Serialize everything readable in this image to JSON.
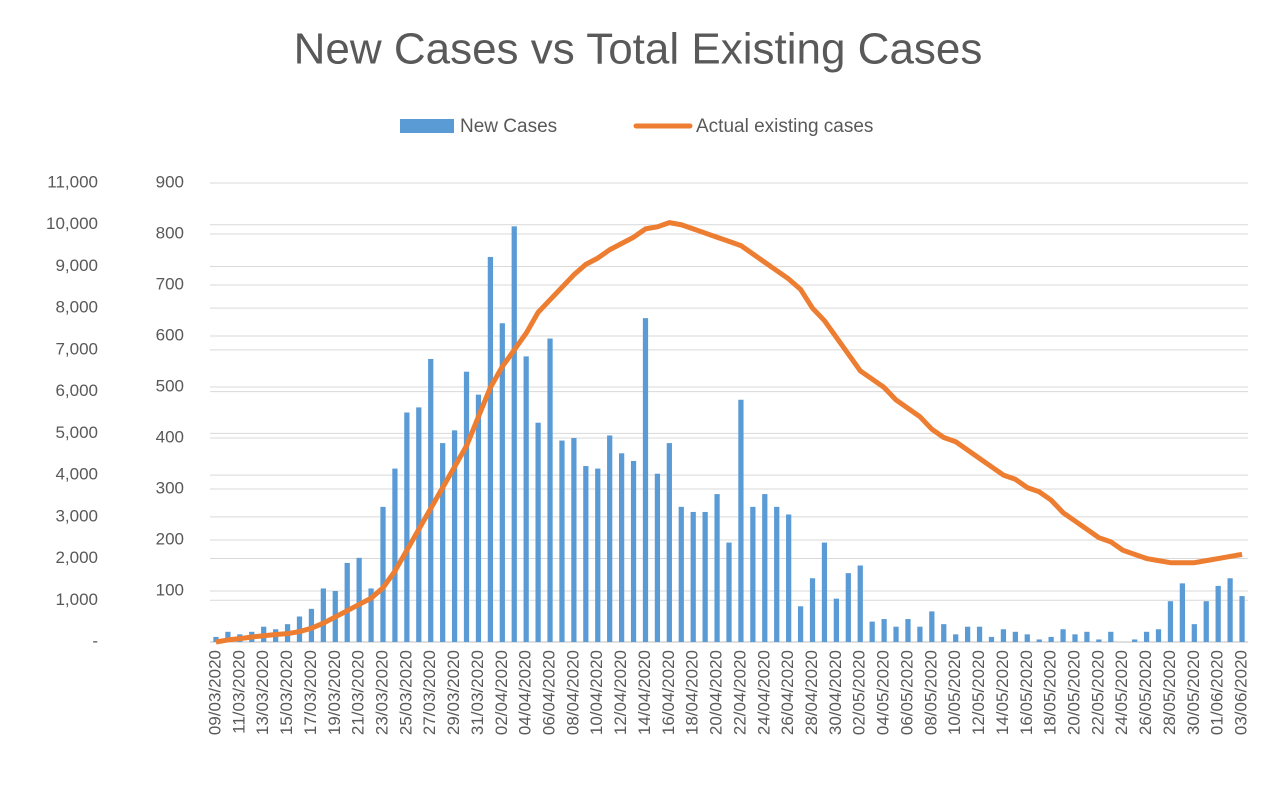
{
  "chart_data": {
    "type": "bar-line",
    "title": "New Cases vs Total Existing Cases",
    "categories": [
      "09/03/2020",
      null,
      "11/03/2020",
      null,
      "13/03/2020",
      null,
      "15/03/2020",
      null,
      "17/03/2020",
      null,
      "19/03/2020",
      null,
      "21/03/2020",
      null,
      "23/03/2020",
      null,
      "25/03/2020",
      null,
      "27/03/2020",
      null,
      "29/03/2020",
      null,
      "31/03/2020",
      null,
      "02/04/2020",
      null,
      "04/04/2020",
      null,
      "06/04/2020",
      null,
      "08/04/2020",
      null,
      "10/04/2020",
      null,
      "12/04/2020",
      null,
      "14/04/2020",
      null,
      "16/04/2020",
      null,
      "18/04/2020",
      null,
      "20/04/2020",
      null,
      "22/04/2020",
      null,
      "24/04/2020",
      null,
      "26/04/2020",
      null,
      "28/04/2020",
      null,
      "30/04/2020",
      null,
      "02/05/2020",
      null,
      "04/05/2020",
      null,
      "06/05/2020",
      null,
      "08/05/2020",
      null,
      "10/05/2020",
      null,
      "12/05/2020",
      null,
      "14/05/2020",
      null,
      "16/05/2020",
      null,
      "18/05/2020",
      null,
      "20/05/2020",
      null,
      "22/05/2020",
      null,
      "24/05/2020",
      null,
      "26/05/2020",
      null,
      "28/05/2020",
      null,
      "30/05/2020",
      null,
      "01/06/2020",
      null,
      "03/06/2020"
    ],
    "series": [
      {
        "name": "New Cases",
        "type": "bar",
        "color": "#5b9bd5",
        "axis": "y2",
        "values": [
          10,
          20,
          15,
          20,
          30,
          25,
          35,
          50,
          65,
          105,
          100,
          155,
          165,
          105,
          265,
          340,
          450,
          460,
          555,
          390,
          415,
          530,
          485,
          755,
          625,
          815,
          560,
          430,
          595,
          395,
          400,
          345,
          340,
          405,
          370,
          355,
          635,
          330,
          390,
          265,
          255,
          255,
          290,
          195,
          475,
          265,
          290,
          265,
          250,
          70,
          125,
          195,
          85,
          135,
          150,
          40,
          45,
          30,
          45,
          30,
          60,
          35,
          15,
          30,
          30,
          10,
          25,
          20,
          15,
          5,
          10,
          25,
          15,
          20,
          5,
          20,
          0,
          5,
          20,
          25,
          80,
          115,
          35,
          80,
          110,
          125,
          90
        ]
      },
      {
        "name": "Actual existing cases",
        "type": "line",
        "color": "#ed7d31",
        "values": [
          0,
          50,
          80,
          120,
          150,
          180,
          200,
          250,
          330,
          450,
          600,
          750,
          900,
          1050,
          1300,
          1700,
          2200,
          2700,
          3200,
          3700,
          4200,
          4700,
          5400,
          6100,
          6600,
          7000,
          7400,
          7900,
          8200,
          8500,
          8800,
          9050,
          9200,
          9400,
          9550,
          9700,
          9900,
          9950,
          10050,
          10000,
          9900,
          9800,
          9700,
          9600,
          9500,
          9300,
          9100,
          8900,
          8700,
          8450,
          8000,
          7700,
          7300,
          6900,
          6500,
          6300,
          6100,
          5800,
          5600,
          5400,
          5100,
          4900,
          4800,
          4600,
          4400,
          4200,
          4000,
          3900,
          3700,
          3600,
          3400,
          3100,
          2900,
          2700,
          2500,
          2400,
          2200,
          2100,
          2000,
          1950,
          1900,
          1900,
          1900,
          1950,
          2000,
          2050,
          2100
        ]
      }
    ],
    "ylim": [
      0,
      11000
    ],
    "yticks": [
      {
        "value": 0,
        "label": "-"
      },
      {
        "value": 1000,
        "label": "1,000"
      },
      {
        "value": 2000,
        "label": "2,000"
      },
      {
        "value": 3000,
        "label": "3,000"
      },
      {
        "value": 4000,
        "label": "4,000"
      },
      {
        "value": 5000,
        "label": "5,000"
      },
      {
        "value": 6000,
        "label": "6,000"
      },
      {
        "value": 7000,
        "label": "7,000"
      },
      {
        "value": 8000,
        "label": "8,000"
      },
      {
        "value": 9000,
        "label": "9,000"
      },
      {
        "value": 10000,
        "label": "10,000"
      },
      {
        "value": 11000,
        "label": "11,000"
      }
    ],
    "y2lim": [
      0,
      900
    ],
    "y2ticks": [
      100,
      200,
      300,
      400,
      500,
      600,
      700,
      800,
      900
    ],
    "grid": true,
    "legend": "top"
  }
}
